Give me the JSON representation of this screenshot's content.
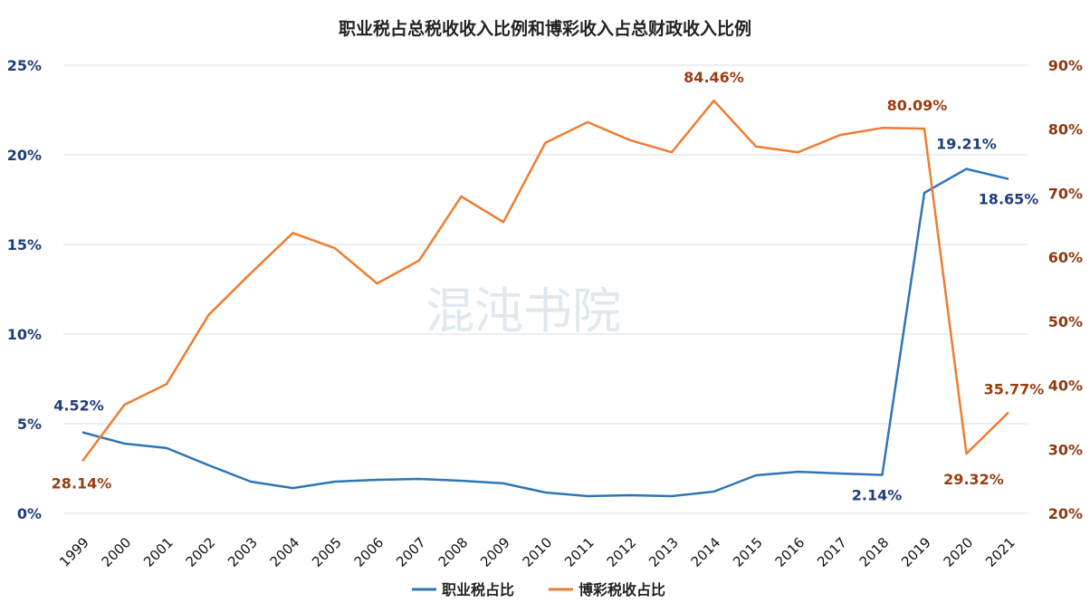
{
  "chart_data": {
    "type": "line",
    "title": "职业税占总税收收入比例和博彩收入占总财政收入比例",
    "watermark": "混沌书院",
    "x": [
      "1999",
      "2000",
      "2001",
      "2002",
      "2003",
      "2004",
      "2005",
      "2006",
      "2007",
      "2008",
      "2009",
      "2010",
      "2011",
      "2012",
      "2013",
      "2014",
      "2015",
      "2016",
      "2017",
      "2018",
      "2019",
      "2020",
      "2021"
    ],
    "left_axis": {
      "ylim": [
        0,
        25
      ],
      "ticks": [
        "0%",
        "5%",
        "10%",
        "15%",
        "20%",
        "25%"
      ],
      "tick_values": [
        0,
        5,
        10,
        15,
        20,
        25
      ],
      "color": "#1f3d7a"
    },
    "right_axis": {
      "ylim": [
        20,
        90
      ],
      "ticks": [
        "20%",
        "30%",
        "40%",
        "50%",
        "60%",
        "70%",
        "80%",
        "90%"
      ],
      "tick_values": [
        20,
        30,
        40,
        50,
        60,
        70,
        80,
        90
      ],
      "color": "#8b3a12"
    },
    "grid": true,
    "legend_position": "bottom",
    "series": [
      {
        "name": "职业税占比",
        "axis": "left",
        "color": "#2e75b6",
        "values": [
          4.52,
          3.89,
          3.64,
          2.68,
          1.77,
          1.41,
          1.77,
          1.87,
          1.92,
          1.82,
          1.67,
          1.16,
          0.96,
          1.01,
          0.96,
          1.21,
          2.12,
          2.32,
          2.22,
          2.14,
          17.88,
          19.21,
          18.65
        ],
        "data_labels": [
          {
            "index": 0,
            "text": "4.52%"
          },
          {
            "index": 19,
            "text": "2.14%"
          },
          {
            "index": 21,
            "text": "19.21%"
          },
          {
            "index": 22,
            "text": "18.65%"
          }
        ]
      },
      {
        "name": "博彩税收占比",
        "axis": "right",
        "color": "#ed7d31",
        "values": [
          28.14,
          36.97,
          40.2,
          51.0,
          57.5,
          63.8,
          61.4,
          55.9,
          59.5,
          69.5,
          65.5,
          77.9,
          81.1,
          78.3,
          76.4,
          84.46,
          77.3,
          76.4,
          79.1,
          80.2,
          80.09,
          29.32,
          35.77
        ],
        "data_labels": [
          {
            "index": 0,
            "text": "28.14%"
          },
          {
            "index": 15,
            "text": "84.46%"
          },
          {
            "index": 20,
            "text": "80.09%"
          },
          {
            "index": 21,
            "text": "29.32%"
          },
          {
            "index": 22,
            "text": "35.77%"
          }
        ]
      }
    ]
  }
}
